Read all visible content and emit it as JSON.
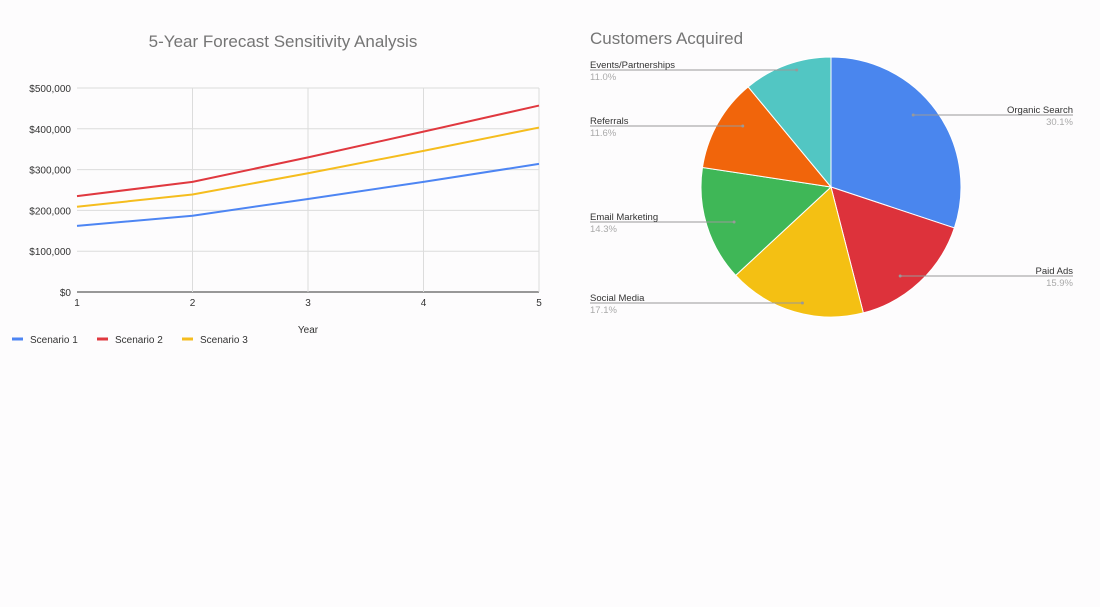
{
  "chart_data": [
    {
      "type": "line",
      "title": "5-Year Forecast Sensitivity Analysis",
      "xlabel": "Year",
      "ylabel": "",
      "x": [
        1,
        2,
        3,
        4,
        5
      ],
      "x_tick_labels": [
        "1",
        "2",
        "3",
        "4",
        "5"
      ],
      "ylim": [
        0,
        500000
      ],
      "y_tick_labels": [
        "$0",
        "$100,000",
        "$200,000",
        "$300,000",
        "$400,000",
        "$500,000"
      ],
      "y_ticks": [
        0,
        100000,
        200000,
        300000,
        400000,
        500000
      ],
      "grid": true,
      "legend_position": "bottom-left",
      "series": [
        {
          "name": "Scenario 1",
          "color": "#4d85f3",
          "values": [
            162000,
            187000,
            228000,
            270000,
            314000
          ]
        },
        {
          "name": "Scenario 2",
          "color": "#e0383f",
          "values": [
            235000,
            270000,
            330000,
            393000,
            457000
          ]
        },
        {
          "name": "Scenario 3",
          "color": "#f5bd1e",
          "values": [
            209000,
            239000,
            291000,
            346000,
            403000
          ]
        }
      ]
    },
    {
      "type": "pie",
      "title": "Customers Acquired",
      "slices": [
        {
          "label": "Organic Search",
          "percent_label": "30.1%",
          "value": 30.1,
          "color": "#4a86ee"
        },
        {
          "label": "Paid Ads",
          "percent_label": "15.9%",
          "value": 15.9,
          "color": "#dd323b"
        },
        {
          "label": "Social Media",
          "percent_label": "17.1%",
          "value": 17.1,
          "color": "#f4c013"
        },
        {
          "label": "Email Marketing",
          "percent_label": "14.3%",
          "value": 14.3,
          "color": "#3fb757"
        },
        {
          "label": "Referrals",
          "percent_label": "11.6%",
          "value": 11.6,
          "color": "#f1650b"
        },
        {
          "label": "Events/Partnerships",
          "percent_label": "11.0%",
          "value": 11.0,
          "color": "#52c6c3"
        }
      ]
    }
  ]
}
